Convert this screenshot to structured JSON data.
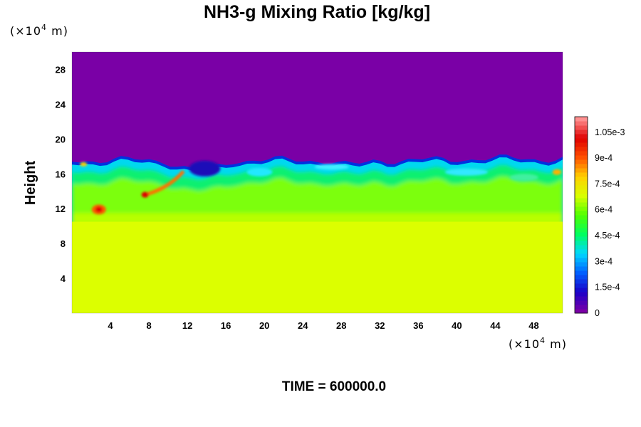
{
  "chart_data": {
    "type": "heatmap",
    "title": "NH3-g Mixing Ratio [kg/kg]",
    "xlabel": "",
    "ylabel": "Height",
    "x_unit_main": "(×10",
    "x_unit_exp": "4",
    "x_unit_tail": " m)",
    "y_unit_main": "(×10",
    "y_unit_exp": "4",
    "y_unit_tail": " m)",
    "xlim": [
      0,
      51
    ],
    "ylim": [
      0,
      30
    ],
    "x_ticks": [
      "4",
      "8",
      "12",
      "16",
      "20",
      "24",
      "28",
      "32",
      "36",
      "40",
      "44",
      "48"
    ],
    "x_tick_values": [
      4,
      8,
      12,
      16,
      20,
      24,
      28,
      32,
      36,
      40,
      44,
      48
    ],
    "y_ticks": [
      "4",
      "8",
      "12",
      "16",
      "20",
      "24",
      "28"
    ],
    "y_tick_values": [
      4,
      8,
      12,
      16,
      20,
      24,
      28
    ],
    "colorbar": {
      "range": [
        0,
        0.00114
      ],
      "tick_labels": [
        "0",
        "1.5e-4",
        "3e-4",
        "4.5e-4",
        "6e-4",
        "7.5e-4",
        "9e-4",
        "1.05e-3"
      ],
      "tick_values": [
        0,
        0.00015,
        0.0003,
        0.00045,
        0.0006,
        0.00075,
        0.0009,
        0.00105
      ],
      "colors": [
        "#7a00a6",
        "#1a00c8",
        "#0060ff",
        "#00d8ff",
        "#00ff60",
        "#50ff00",
        "#d8ff00",
        "#ffd000",
        "#ff5000",
        "#e00000",
        "#ff9090"
      ]
    },
    "field_summary": {
      "upper_layer_value": 0,
      "upper_layer_color": "#7a00a6",
      "lower_layer_value": 0.00072,
      "lower_layer_color": "#dcff00",
      "interface_height_approx": 17.5,
      "mixed_layer_bottom_approx": 10.5
    },
    "caption": "TIME = 600000.0"
  }
}
